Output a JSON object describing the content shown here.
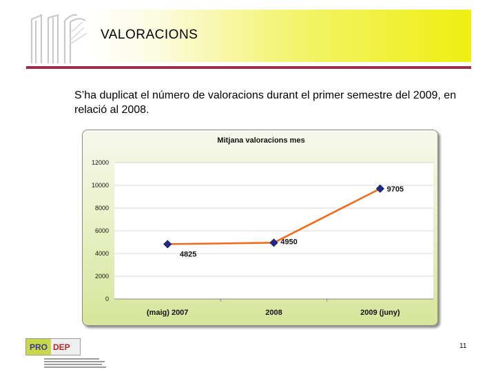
{
  "header": {
    "title": "VALORACIONS"
  },
  "body": {
    "text": "S’ha duplicat el número de valoracions durant el primer semestre del 2009, en relació al 2008."
  },
  "footer": {
    "page_number": "11",
    "logo_text_left": "PRO",
    "logo_text_right": "DEP"
  },
  "colors": {
    "header_rule": "#9b2f4a",
    "series_line": "#f26a1b",
    "marker": "#1f2a8c"
  },
  "chart_data": {
    "type": "line",
    "title": "Mitjana valoracions mes",
    "categories": [
      "(maig) 2007",
      "2008",
      "2009 (juny)"
    ],
    "series": [
      {
        "values": [
          4825,
          4950,
          9705
        ]
      }
    ],
    "data_labels": [
      "4825",
      "4950",
      "9705"
    ],
    "y_ticks": [
      "0",
      "2000",
      "4000",
      "6000",
      "8000",
      "10000",
      "12000"
    ],
    "ylim": [
      0,
      12000
    ],
    "grid": true,
    "legend": "none"
  }
}
